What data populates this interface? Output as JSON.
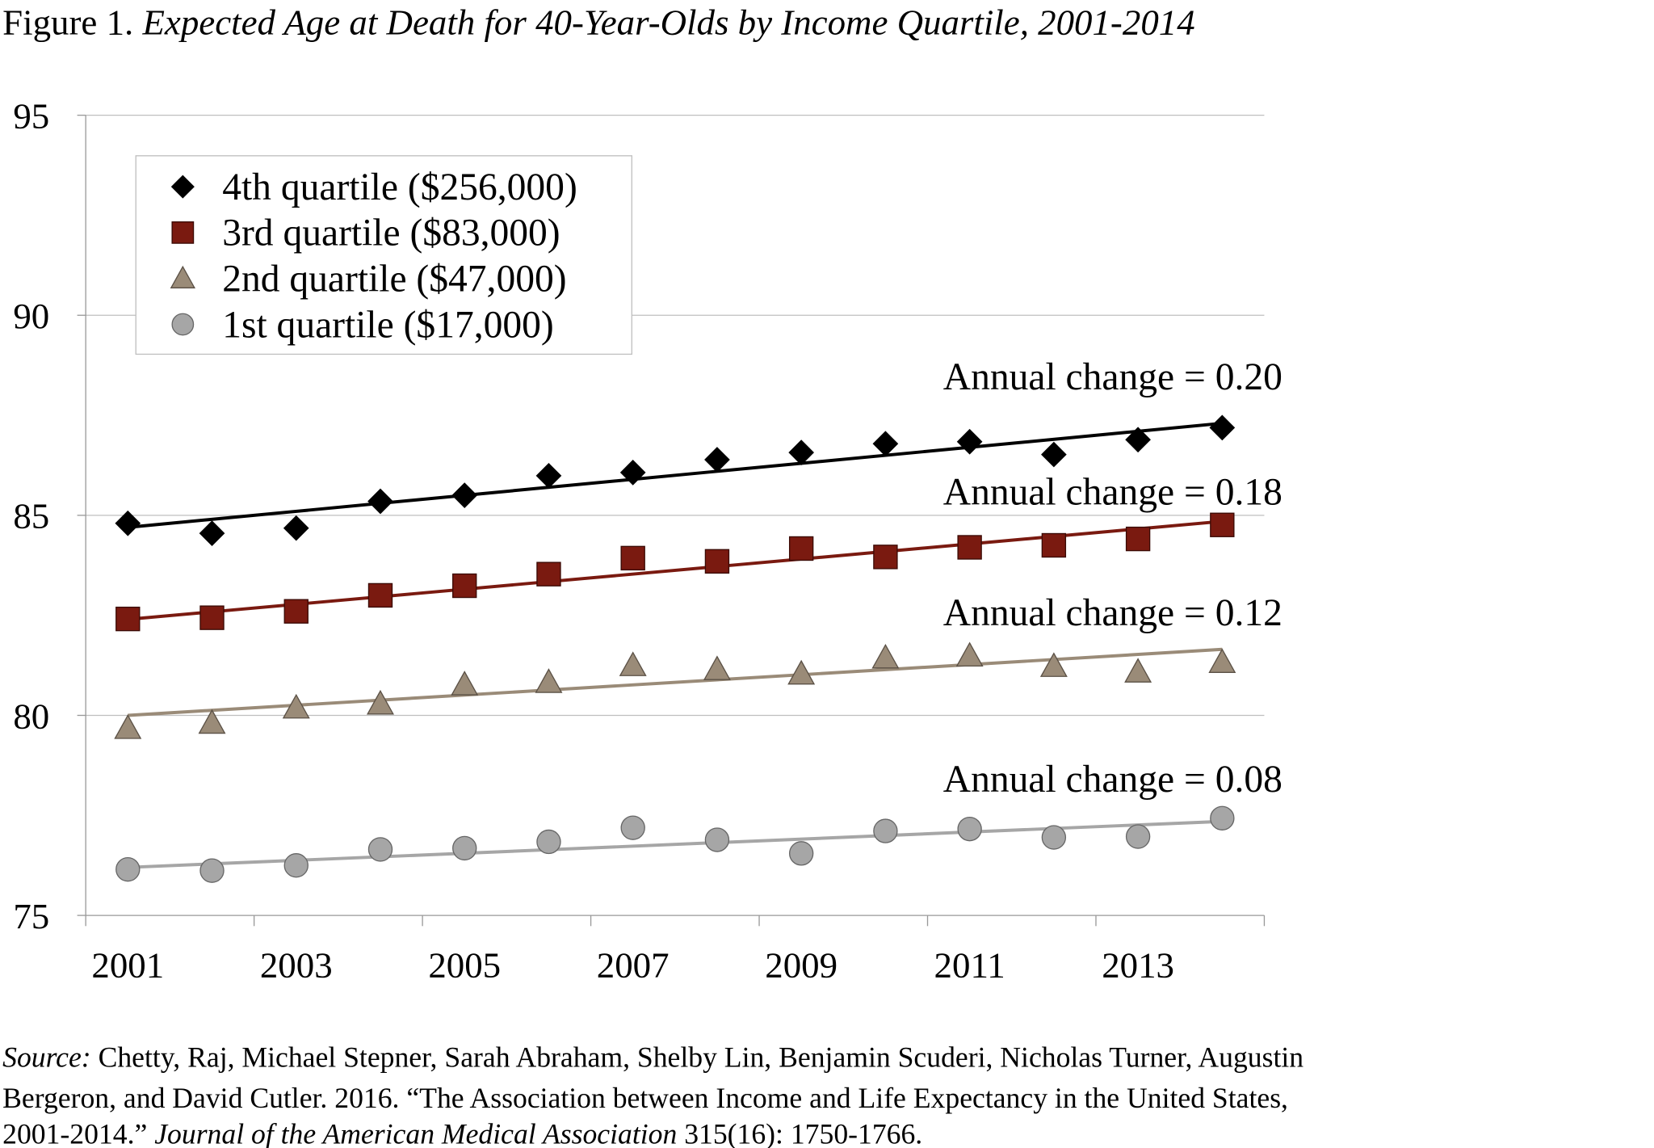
{
  "chart_data": {
    "type": "scatter",
    "title_prefix": "Figure 1.",
    "title": "Expected Age at Death for 40-Year-Olds by Income Quartile, 2001-2014",
    "xlabel": "",
    "ylabel": "",
    "ylim": [
      75,
      95
    ],
    "yticks": [
      "95",
      "90",
      "85",
      "80",
      "75"
    ],
    "x": [
      2001,
      2002,
      2003,
      2004,
      2005,
      2006,
      2007,
      2008,
      2009,
      2010,
      2011,
      2012,
      2013,
      2014
    ],
    "xtick_labels": [
      "2001",
      "2003",
      "2005",
      "2007",
      "2009",
      "2011",
      "2013"
    ],
    "grid": "horizontal",
    "legend_position": "top-left",
    "series": [
      {
        "name": "4th quartile ($256,000)",
        "marker": "diamond",
        "color": "#000000",
        "values": [
          84.8,
          84.55,
          84.68,
          85.35,
          85.5,
          85.99,
          86.07,
          86.39,
          86.57,
          86.79,
          86.84,
          86.52,
          86.89,
          87.19
        ],
        "trend": [
          84.7,
          87.3
        ],
        "annotation": "Annual change = 0.20"
      },
      {
        "name": "3rd quartile ($83,000)",
        "marker": "square",
        "color": "#7a1a10",
        "values": [
          82.41,
          82.44,
          82.6,
          83.0,
          83.24,
          83.53,
          83.93,
          83.85,
          84.17,
          83.96,
          84.2,
          84.25,
          84.41,
          84.76
        ],
        "trend": [
          82.4,
          84.85
        ],
        "annotation": "Annual change = 0.18"
      },
      {
        "name": "2nd quartile ($47,000)",
        "marker": "triangle",
        "color": "#9a8b78",
        "values": [
          79.68,
          79.81,
          80.19,
          80.29,
          80.77,
          80.83,
          81.25,
          81.15,
          81.04,
          81.44,
          81.49,
          81.23,
          81.09,
          81.33
        ],
        "trend": [
          80.0,
          81.65
        ],
        "annotation": "Annual change = 0.12"
      },
      {
        "name": "1st quartile ($17,000)",
        "marker": "circle",
        "color": "#a6a6a6",
        "values": [
          76.15,
          76.12,
          76.25,
          76.65,
          76.68,
          76.84,
          77.19,
          76.89,
          76.55,
          77.11,
          77.16,
          76.95,
          76.97,
          77.43
        ],
        "trend": [
          76.2,
          77.35
        ],
        "annotation": "Annual change = 0.08"
      }
    ]
  },
  "source": {
    "label": "Source:",
    "line1": " Chetty, Raj, Michael Stepner, Sarah Abraham, Shelby Lin, Benjamin Scuderi, Nicholas Turner, Augustin",
    "line2": "Bergeron, and David Cutler. 2016. “The Association between Income and Life Expectancy in the United States,",
    "line3_start": "2001-2014.” ",
    "journal": "Journal of the American Medical Association",
    "line3_end": " 315(16): 1750-1766."
  }
}
